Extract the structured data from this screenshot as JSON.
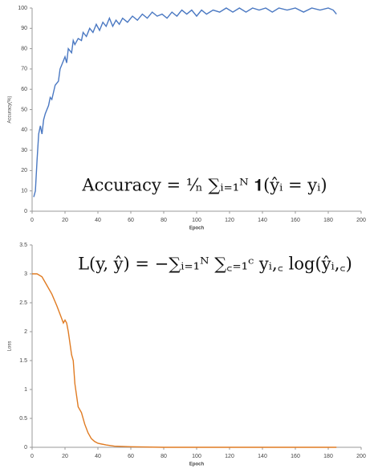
{
  "chart_data": [
    {
      "type": "line",
      "x_label": "Epoch",
      "y_label": "Accuracy(%)",
      "annotation": "Accuracy = ¹⁄ₙ ∑ᵢ₌₁ᴺ 𝟏(ŷᵢ = yᵢ)",
      "xlim": [
        0,
        200
      ],
      "xticks": [
        0,
        20,
        40,
        60,
        80,
        100,
        120,
        140,
        160,
        180,
        200
      ],
      "ylim": [
        0,
        100
      ],
      "yticks": [
        0,
        10,
        20,
        30,
        40,
        50,
        60,
        70,
        80,
        90,
        100
      ],
      "series": [
        {
          "name": "Accuracy",
          "color": "#4a78c2",
          "x": [
            1,
            2,
            3,
            4,
            5,
            6,
            7,
            8,
            10,
            11,
            12,
            14,
            16,
            17,
            18,
            20,
            21,
            22,
            24,
            25,
            26,
            28,
            30,
            31,
            33,
            35,
            37,
            39,
            41,
            43,
            45,
            47,
            49,
            51,
            53,
            55,
            58,
            61,
            64,
            67,
            70,
            73,
            76,
            79,
            82,
            85,
            88,
            91,
            94,
            97,
            100,
            103,
            106,
            110,
            114,
            118,
            122,
            126,
            130,
            134,
            138,
            142,
            146,
            150,
            155,
            160,
            165,
            170,
            175,
            180,
            183,
            185
          ],
          "values": [
            7,
            10,
            25,
            38,
            42,
            38,
            45,
            48,
            52,
            56,
            55,
            62,
            64,
            70,
            72,
            76,
            73,
            80,
            78,
            84,
            82,
            85,
            84,
            88,
            86,
            90,
            88,
            92,
            89,
            93,
            91,
            95,
            91,
            94,
            92,
            95,
            93,
            96,
            94,
            97,
            95,
            98,
            96,
            97,
            95,
            98,
            96,
            99,
            97,
            99,
            96,
            99,
            97,
            99,
            98,
            100,
            98,
            100,
            98,
            100,
            99,
            100,
            98,
            100,
            99,
            100,
            98,
            100,
            99,
            100,
            99,
            97
          ]
        }
      ]
    },
    {
      "type": "line",
      "x_label": "Epoch",
      "y_label": "Loss",
      "annotation": "L(y, ŷ) = −∑ᵢ₌₁ᴺ ∑꜀₌₁ᶜ yᵢ,꜀ log(ŷᵢ,꜀)",
      "xlim": [
        0,
        200
      ],
      "xticks": [
        0,
        20,
        40,
        60,
        80,
        100,
        120,
        140,
        160,
        180,
        200
      ],
      "ylim": [
        0,
        3.5
      ],
      "yticks": [
        0,
        0.5,
        1,
        1.5,
        2,
        2.5,
        3,
        3.5
      ],
      "series": [
        {
          "name": "Loss",
          "color": "#e07b22",
          "x": [
            0,
            3,
            6,
            9,
            12,
            15,
            17,
            19,
            20,
            21,
            22,
            24,
            25,
            26,
            27,
            28,
            30,
            32,
            34,
            36,
            38,
            40,
            45,
            50,
            60,
            80,
            120,
            160,
            185
          ],
          "values": [
            3.0,
            3.0,
            2.95,
            2.8,
            2.65,
            2.45,
            2.3,
            2.15,
            2.2,
            2.15,
            2.0,
            1.6,
            1.5,
            1.1,
            0.9,
            0.7,
            0.6,
            0.4,
            0.25,
            0.15,
            0.1,
            0.07,
            0.04,
            0.02,
            0.01,
            0,
            0,
            0,
            0
          ]
        }
      ]
    }
  ]
}
